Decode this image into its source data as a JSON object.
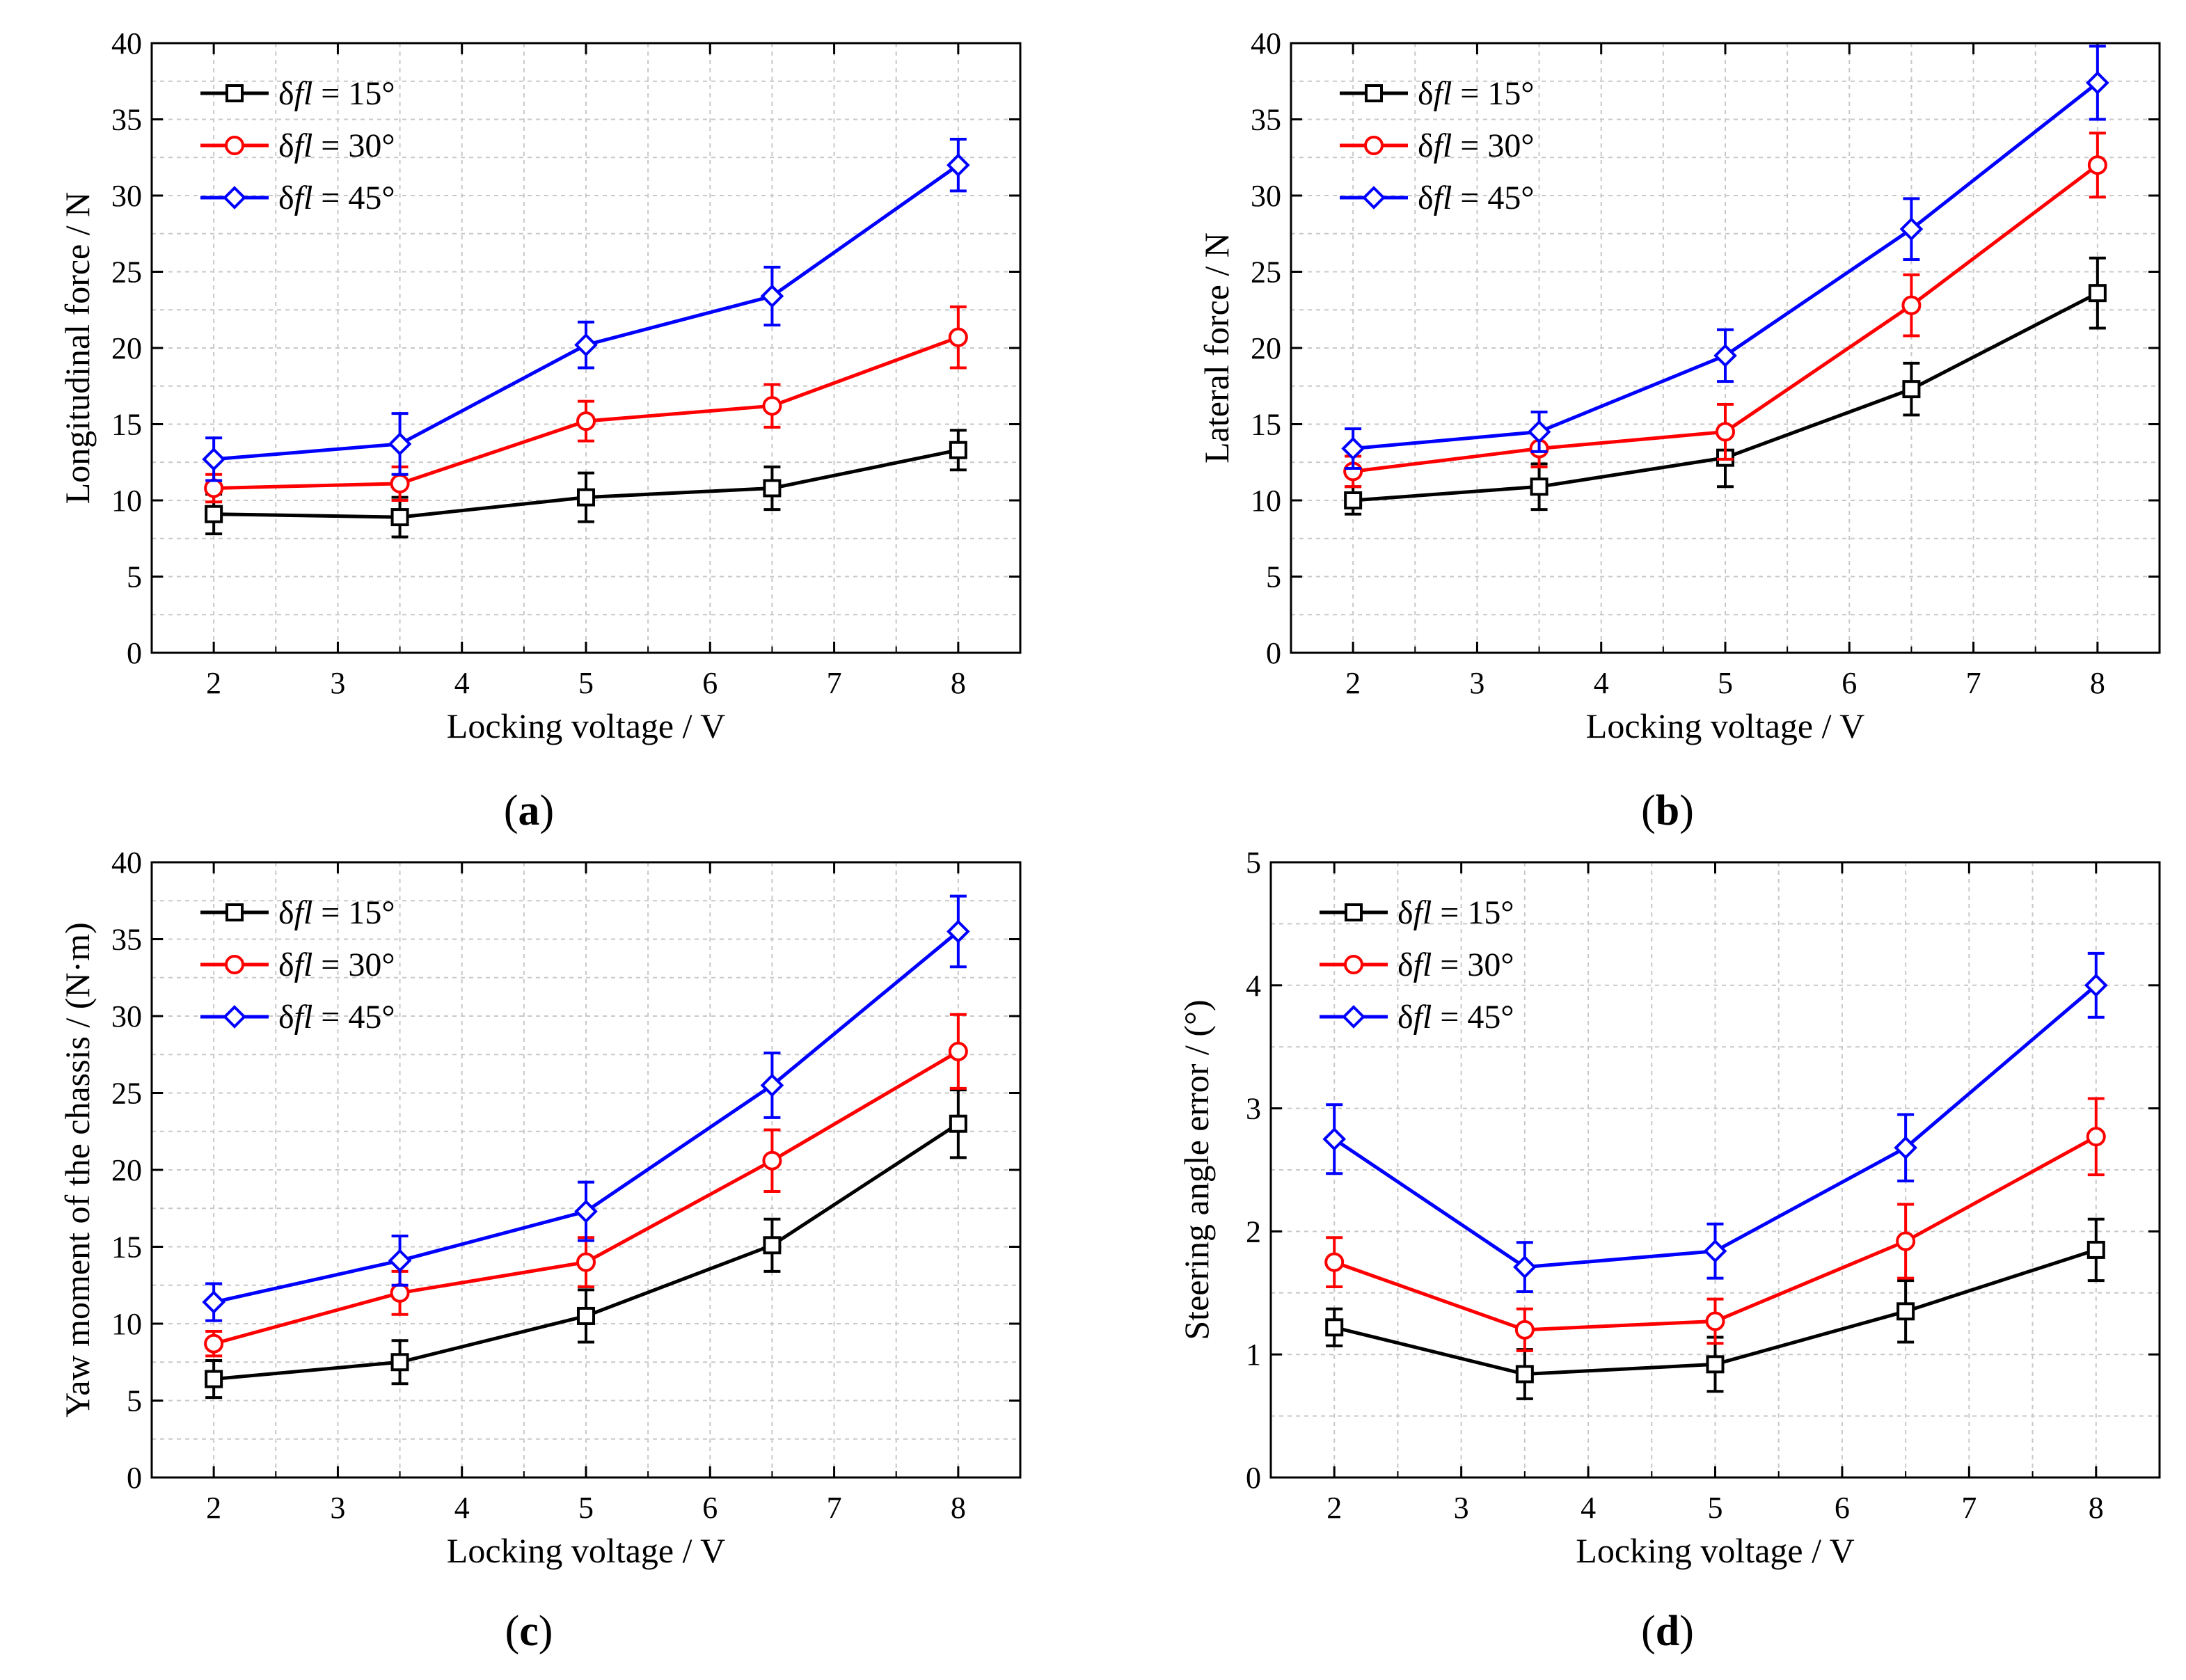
{
  "chart_data": [
    {
      "id": "a",
      "type": "line",
      "caption": "a",
      "xlabel": "Locking voltage / V",
      "ylabel": "Longitudinal force / N",
      "xlim": [
        1.5,
        8.5
      ],
      "ylim": [
        0,
        40
      ],
      "xticks": [
        2,
        3,
        4,
        5,
        6,
        7,
        8
      ],
      "yticks": [
        0,
        5,
        10,
        15,
        20,
        25,
        30,
        35,
        40
      ],
      "grid": true,
      "legend_position": "top-left",
      "x": [
        2,
        3.5,
        5,
        6.5,
        8
      ],
      "series": [
        {
          "name_prefix": "δ",
          "name_var": "fl",
          "name_value": " = 15°",
          "color": "#000000",
          "marker": "square",
          "values": [
            9.1,
            8.9,
            10.2,
            10.8,
            13.3
          ],
          "errors": [
            1.3,
            1.3,
            1.6,
            1.4,
            1.3
          ]
        },
        {
          "name_prefix": "δ",
          "name_var": "fl",
          "name_value": " = 30°",
          "color": "#ff0000",
          "marker": "circle",
          "values": [
            10.8,
            11.1,
            15.2,
            16.2,
            20.7
          ],
          "errors": [
            0.9,
            1.1,
            1.3,
            1.4,
            2.0
          ]
        },
        {
          "name_prefix": "δ",
          "name_var": "fl",
          "name_value": " = 45°",
          "color": "#0000ff",
          "marker": "diamond",
          "values": [
            12.7,
            13.7,
            20.2,
            23.4,
            32.0
          ],
          "errors": [
            1.4,
            2.0,
            1.5,
            1.9,
            1.7
          ]
        }
      ]
    },
    {
      "id": "b",
      "type": "line",
      "caption": "b",
      "xlabel": "Locking voltage / V",
      "ylabel": "Lateral force / N",
      "xlim": [
        1.5,
        8.5
      ],
      "ylim": [
        0,
        40
      ],
      "xticks": [
        2,
        3,
        4,
        5,
        6,
        7,
        8
      ],
      "yticks": [
        0,
        5,
        10,
        15,
        20,
        25,
        30,
        35,
        40
      ],
      "grid": true,
      "legend_position": "top-left",
      "x": [
        2,
        3.5,
        5,
        6.5,
        8
      ],
      "series": [
        {
          "name_prefix": "δ",
          "name_var": "fl",
          "name_value": " = 15°",
          "color": "#000000",
          "marker": "square",
          "values": [
            10.0,
            10.9,
            12.8,
            17.3,
            23.6
          ],
          "errors": [
            0.9,
            1.5,
            1.9,
            1.7,
            2.3
          ]
        },
        {
          "name_prefix": "δ",
          "name_var": "fl",
          "name_value": " = 30°",
          "color": "#ff0000",
          "marker": "circle",
          "values": [
            11.9,
            13.4,
            14.5,
            22.8,
            32.0
          ],
          "errors": [
            1.0,
            1.2,
            1.8,
            2.0,
            2.1
          ]
        },
        {
          "name_prefix": "δ",
          "name_var": "fl",
          "name_value": " = 45°",
          "color": "#0000ff",
          "marker": "diamond",
          "values": [
            13.4,
            14.5,
            19.5,
            27.8,
            37.4
          ],
          "errors": [
            1.3,
            1.3,
            1.7,
            2.0,
            2.4
          ]
        }
      ]
    },
    {
      "id": "c",
      "type": "line",
      "caption": "c",
      "xlabel": "Locking voltage / V",
      "ylabel": "Yaw moment of the chassis / (N·m)",
      "xlim": [
        1.5,
        8.5
      ],
      "ylim": [
        0,
        40
      ],
      "xticks": [
        2,
        3,
        4,
        5,
        6,
        7,
        8
      ],
      "yticks": [
        0,
        5,
        10,
        15,
        20,
        25,
        30,
        35,
        40
      ],
      "grid": true,
      "legend_position": "top-left",
      "x": [
        2,
        3.5,
        5,
        6.5,
        8
      ],
      "series": [
        {
          "name_prefix": "δ",
          "name_var": "fl",
          "name_value": " = 15°",
          "color": "#000000",
          "marker": "square",
          "values": [
            6.4,
            7.5,
            10.5,
            15.1,
            23.0
          ],
          "errors": [
            1.2,
            1.4,
            1.7,
            1.7,
            2.2
          ]
        },
        {
          "name_prefix": "δ",
          "name_var": "fl",
          "name_value": " = 30°",
          "color": "#ff0000",
          "marker": "circle",
          "values": [
            8.7,
            12.0,
            14.0,
            20.6,
            27.7
          ],
          "errors": [
            0.8,
            1.4,
            1.6,
            2.0,
            2.4
          ]
        },
        {
          "name_prefix": "δ",
          "name_var": "fl",
          "name_value": " = 45°",
          "color": "#0000ff",
          "marker": "diamond",
          "values": [
            11.4,
            14.1,
            17.3,
            25.5,
            35.5
          ],
          "errors": [
            1.2,
            1.6,
            1.9,
            2.1,
            2.3
          ]
        }
      ]
    },
    {
      "id": "d",
      "type": "line",
      "caption": "d",
      "xlabel": "Locking voltage / V",
      "ylabel": "Steering angle error / (°)",
      "xlim": [
        1.5,
        8.5
      ],
      "ylim": [
        0,
        5
      ],
      "xticks": [
        2,
        3,
        4,
        5,
        6,
        7,
        8
      ],
      "yticks": [
        0,
        1,
        2,
        3,
        4,
        5
      ],
      "grid": true,
      "legend_position": "top-left",
      "x": [
        2,
        3.5,
        5,
        6.5,
        8
      ],
      "series": [
        {
          "name_prefix": "δ",
          "name_var": "fl",
          "name_value": " = 15°",
          "color": "#000000",
          "marker": "square",
          "values": [
            1.22,
            0.84,
            0.92,
            1.35,
            1.85
          ],
          "errors": [
            0.15,
            0.2,
            0.22,
            0.25,
            0.25
          ]
        },
        {
          "name_prefix": "δ",
          "name_var": "fl",
          "name_value": " = 30°",
          "color": "#ff0000",
          "marker": "circle",
          "values": [
            1.75,
            1.2,
            1.27,
            1.92,
            2.77
          ],
          "errors": [
            0.2,
            0.17,
            0.18,
            0.3,
            0.31
          ]
        },
        {
          "name_prefix": "δ",
          "name_var": "fl",
          "name_value": " = 45°",
          "color": "#0000ff",
          "marker": "diamond",
          "values": [
            2.75,
            1.71,
            1.84,
            2.68,
            4.0
          ],
          "errors": [
            0.28,
            0.2,
            0.22,
            0.27,
            0.26
          ]
        }
      ]
    }
  ]
}
